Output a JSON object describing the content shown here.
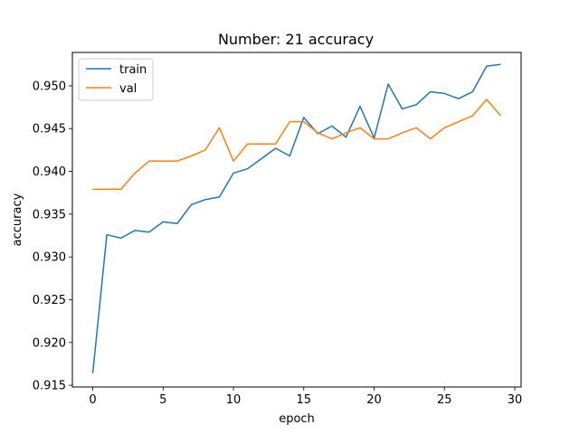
{
  "chart_data": {
    "type": "line",
    "title": "Number: 21 accuracy",
    "xlabel": "epoch",
    "ylabel": "accuracy",
    "xlim": [
      -1.45,
      30.45
    ],
    "ylim": [
      0.9148,
      0.9539
    ],
    "x_ticks": [
      0,
      5,
      10,
      15,
      20,
      25,
      30
    ],
    "y_ticks": [
      0.915,
      0.92,
      0.925,
      0.93,
      0.935,
      0.94,
      0.945,
      0.95
    ],
    "y_tick_labels": [
      "0.915",
      "0.920",
      "0.925",
      "0.930",
      "0.935",
      "0.940",
      "0.945",
      "0.950"
    ],
    "grid": false,
    "legend_position": "top-left",
    "series": [
      {
        "name": "train",
        "color": "#1f77b4",
        "x": [
          0,
          1,
          2,
          3,
          4,
          5,
          6,
          7,
          8,
          9,
          10,
          11,
          12,
          13,
          14,
          15,
          16,
          17,
          18,
          19,
          20,
          21,
          22,
          23,
          24,
          25,
          26,
          27,
          28,
          29
        ],
        "values": [
          0.9164,
          0.9326,
          0.9322,
          0.9331,
          0.9329,
          0.9341,
          0.9339,
          0.9361,
          0.9367,
          0.937,
          0.9398,
          0.9403,
          0.9415,
          0.9427,
          0.9418,
          0.9463,
          0.9444,
          0.9453,
          0.944,
          0.9476,
          0.9439,
          0.9502,
          0.9473,
          0.9478,
          0.9493,
          0.9491,
          0.9485,
          0.9493,
          0.9523,
          0.9525
        ]
      },
      {
        "name": "val",
        "color": "#ff7f0e",
        "x": [
          0,
          1,
          2,
          3,
          4,
          5,
          6,
          7,
          8,
          9,
          10,
          11,
          12,
          13,
          14,
          15,
          16,
          17,
          18,
          19,
          20,
          21,
          22,
          23,
          24,
          25,
          26,
          27,
          28,
          29
        ],
        "values": [
          0.9379,
          0.9379,
          0.9379,
          0.9398,
          0.9412,
          0.9412,
          0.9412,
          0.9418,
          0.9425,
          0.9451,
          0.9412,
          0.9432,
          0.9432,
          0.9432,
          0.9458,
          0.9458,
          0.9445,
          0.9438,
          0.9445,
          0.9451,
          0.9438,
          0.9438,
          0.9445,
          0.9451,
          0.9438,
          0.9451,
          0.9458,
          0.9465,
          0.9484,
          0.9465
        ]
      }
    ]
  }
}
